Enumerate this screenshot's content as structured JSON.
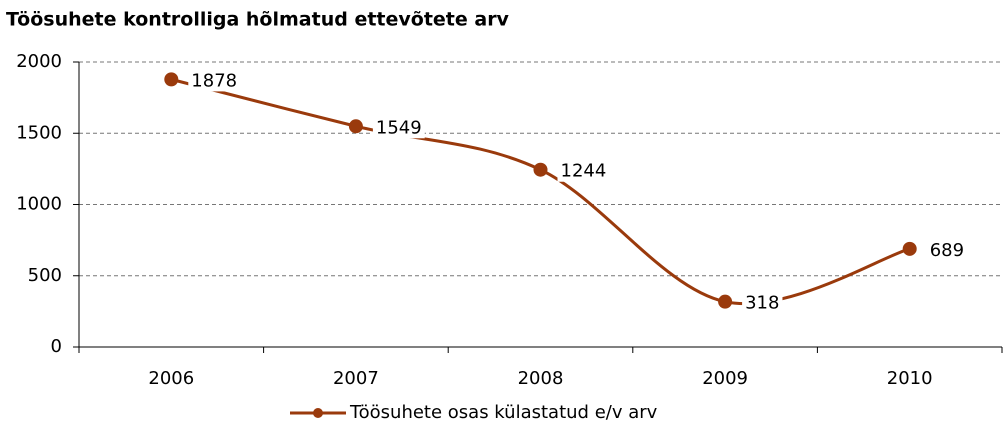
{
  "chart_data": {
    "type": "line",
    "title": "Töösuhete kontrolliga hõlmatud ettevõtete arv",
    "categories": [
      "2006",
      "2007",
      "2008",
      "2009",
      "2010"
    ],
    "series": [
      {
        "name": "Töösuhete osas külastatud e/v arv",
        "color": "#9a3a0c",
        "values": [
          1878,
          1549,
          1244,
          318,
          689
        ]
      }
    ],
    "ylim": [
      0,
      2000
    ],
    "yticks": [
      0,
      500,
      1000,
      1500,
      2000
    ],
    "grid": true,
    "legend": "bottom"
  }
}
